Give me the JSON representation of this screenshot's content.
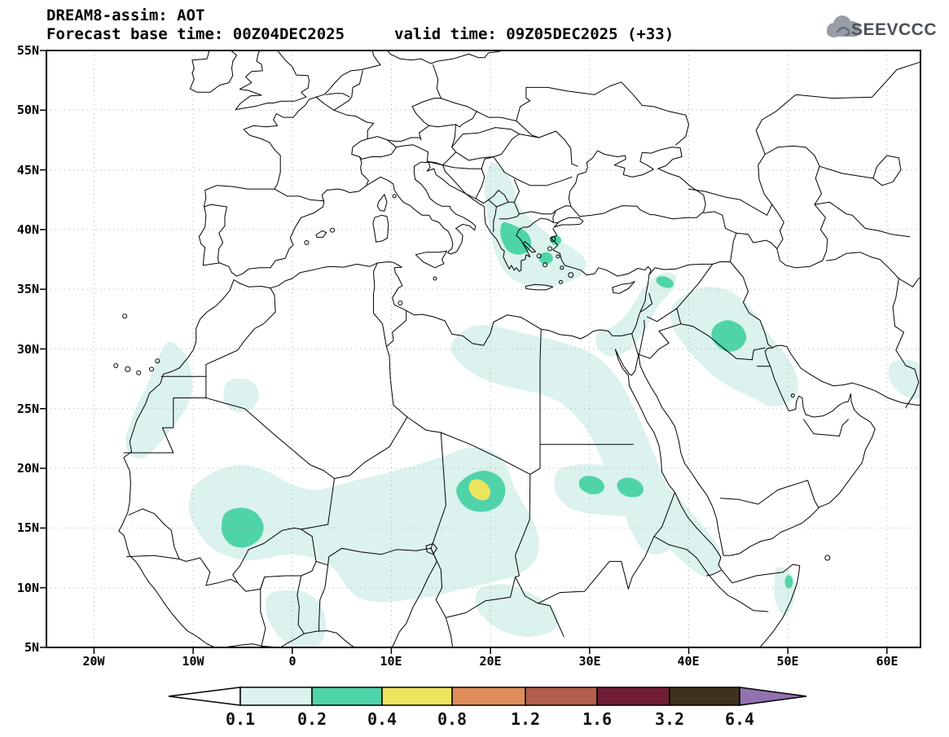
{
  "header": {
    "line1": "DREAM8-assim: AOT",
    "line2_left": "Forecast base time: 00Z04DEC2025",
    "line2_right": "valid time: 09Z05DEC2025 (+33)"
  },
  "logo": {
    "text": "SEEVCCC"
  },
  "axes": {
    "lat_labels": [
      "55N",
      "50N",
      "45N",
      "40N",
      "35N",
      "30N",
      "25N",
      "20N",
      "15N",
      "10N",
      "5N"
    ],
    "lon_labels": [
      "20W",
      "10W",
      "0",
      "10E",
      "20E",
      "30E",
      "40E",
      "50E",
      "60E"
    ]
  },
  "legend": {
    "labels": [
      "0.1",
      "0.2",
      "0.4",
      "0.8",
      "1.2",
      "1.6",
      "3.2",
      "6.4"
    ],
    "colors": {
      "below": "#ffffff",
      "c01": "#dbf2ee",
      "c02": "#4fd4a9",
      "c04": "#ede45e",
      "c08": "#df8c5a",
      "c12": "#b25f4b",
      "c16": "#701d35",
      "c32": "#3e311c",
      "above": "#9271b0"
    }
  },
  "chart_data": {
    "type": "heatmap",
    "subtype": "filled-contour geographic map",
    "variable": "AOT (aerosol optical thickness)",
    "model": "DREAM8-assim",
    "base_time": "00Z04DEC2025",
    "valid_time": "09Z05DEC2025",
    "forecast_hour": 33,
    "lat_ticks": [
      "5N",
      "10N",
      "15N",
      "20N",
      "25N",
      "30N",
      "35N",
      "40N",
      "45N",
      "50N",
      "55N"
    ],
    "lon_ticks": [
      "20W",
      "10W",
      "0",
      "10E",
      "20E",
      "30E",
      "40E",
      "50E",
      "60E"
    ],
    "contour_levels": [
      0.1,
      0.2,
      0.4,
      0.8,
      1.2,
      1.6,
      3.2,
      6.4
    ],
    "level_colors": [
      "#dbf2ee",
      "#4fd4a9",
      "#ede45e",
      "#df8c5a",
      "#b25f4b",
      "#701d35",
      "#3e311c",
      "#9271b0"
    ],
    "grid": "dotted, 10 deg lon x 5 deg lat",
    "features": [
      {
        "region": "Greece / Aegean plume",
        "lon": 23,
        "lat": 39,
        "max_level": 0.2
      },
      {
        "region": "NE Libya - Egypt - Levant band",
        "lon": 27,
        "lat": 29,
        "max_level": 0.1
      },
      {
        "region": "Syria/Turkey border spot",
        "lon": 37.5,
        "lat": 35.5,
        "max_level": 0.2
      },
      {
        "region": "Iraq - Persian Gulf blob",
        "lon": 44,
        "lat": 31,
        "max_level": 0.2
      },
      {
        "region": "Mali / Sahel core",
        "lon": -5,
        "lat": 15,
        "max_level": 0.2
      },
      {
        "region": "Chad (Bodele) maximum",
        "lon": 19,
        "lat": 18.2,
        "max_level": 0.4
      },
      {
        "region": "Sudan twin cores",
        "lon": 32,
        "lat": 18.5,
        "max_level": 0.2
      },
      {
        "region": "Southern Red Sea band",
        "lon": 39,
        "lat": 15,
        "max_level": 0.1
      },
      {
        "region": "West Sahara coastal strip",
        "lon": -13,
        "lat": 26,
        "max_level": 0.1
      },
      {
        "region": "Somalia coast spot",
        "lon": 50,
        "lat": 10.5,
        "max_level": 0.2
      },
      {
        "region": "Makran / Pakistan coast corner",
        "lon": 63,
        "lat": 27,
        "max_level": 0.1
      },
      {
        "region": "Gulf of Guinea tongue",
        "lon": 1,
        "lat": 7,
        "max_level": 0.1
      }
    ]
  }
}
